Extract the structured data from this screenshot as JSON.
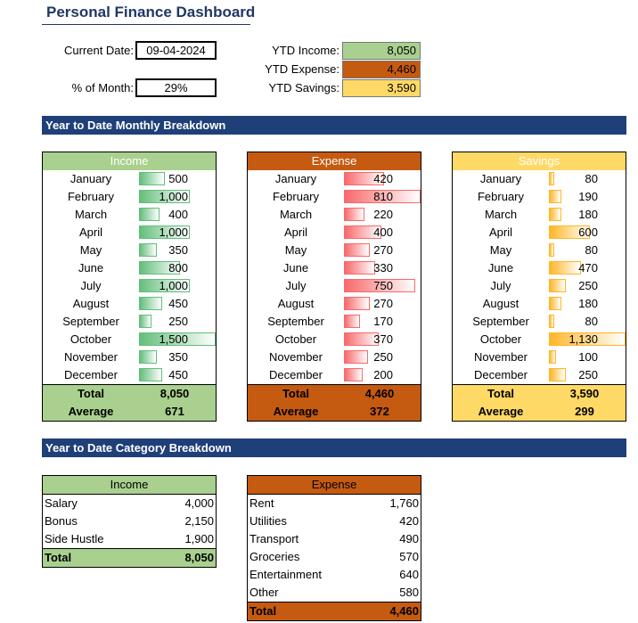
{
  "title": "Personal Finance Dashboard",
  "summary": {
    "current_date_label": "Current Date:",
    "current_date": "09-04-2024",
    "pct_month_label": "% of Month:",
    "pct_month": "29%",
    "ytd_income_label": "YTD Income:",
    "ytd_income": "8,050",
    "ytd_expense_label": "YTD Expense:",
    "ytd_expense": "4,460",
    "ytd_savings_label": "YTD Savings:",
    "ytd_savings": "3,590"
  },
  "monthly_section_title": "Year to Date Monthly Breakdown",
  "category_section_title": "Year to Date Category Breakdown",
  "months": [
    "January",
    "February",
    "March",
    "April",
    "May",
    "June",
    "July",
    "August",
    "September",
    "October",
    "November",
    "December"
  ],
  "total_label": "Total",
  "average_label": "Average",
  "monthly": {
    "income": {
      "header": "Income",
      "values": [
        500,
        1000,
        400,
        1000,
        350,
        800,
        1000,
        450,
        250,
        1500,
        350,
        450
      ],
      "labels": [
        "500",
        "1,000",
        "400",
        "1,000",
        "350",
        "800",
        "1,000",
        "450",
        "250",
        "1,500",
        "350",
        "450"
      ],
      "total": "8,050",
      "average": "671"
    },
    "expense": {
      "header": "Expense",
      "values": [
        420,
        810,
        220,
        400,
        270,
        330,
        750,
        270,
        170,
        370,
        250,
        200
      ],
      "labels": [
        "420",
        "810",
        "220",
        "400",
        "270",
        "330",
        "750",
        "270",
        "170",
        "370",
        "250",
        "200"
      ],
      "total": "4,460",
      "average": "372"
    },
    "savings": {
      "header": "Savings",
      "values": [
        80,
        190,
        180,
        600,
        80,
        470,
        250,
        180,
        80,
        1130,
        100,
        250
      ],
      "labels": [
        "80",
        "190",
        "180",
        "600",
        "80",
        "470",
        "250",
        "180",
        "80",
        "1,130",
        "100",
        "250"
      ],
      "total": "3,590",
      "average": "299"
    }
  },
  "category": {
    "income": {
      "header": "Income",
      "rows": [
        {
          "name": "Salary",
          "value": "4,000"
        },
        {
          "name": "Bonus",
          "value": "2,150"
        },
        {
          "name": "Side Hustle",
          "value": "1,900"
        }
      ],
      "total": "8,050"
    },
    "expense": {
      "header": "Expense",
      "rows": [
        {
          "name": "Rent",
          "value": "1,760"
        },
        {
          "name": "Utilities",
          "value": "420"
        },
        {
          "name": "Transport",
          "value": "490"
        },
        {
          "name": "Groceries",
          "value": "570"
        },
        {
          "name": "Entertainment",
          "value": "640"
        },
        {
          "name": "Other",
          "value": "580"
        }
      ],
      "total": "4,460"
    }
  },
  "colors": {
    "navy": "#1F3F78",
    "income_fill": "#A9D08E",
    "expense_fill": "#C55A11",
    "savings_fill": "#FFD966",
    "income_bar": "#63BE7B",
    "expense_bar": "#F8696B",
    "savings_bar": "#FFB628"
  }
}
